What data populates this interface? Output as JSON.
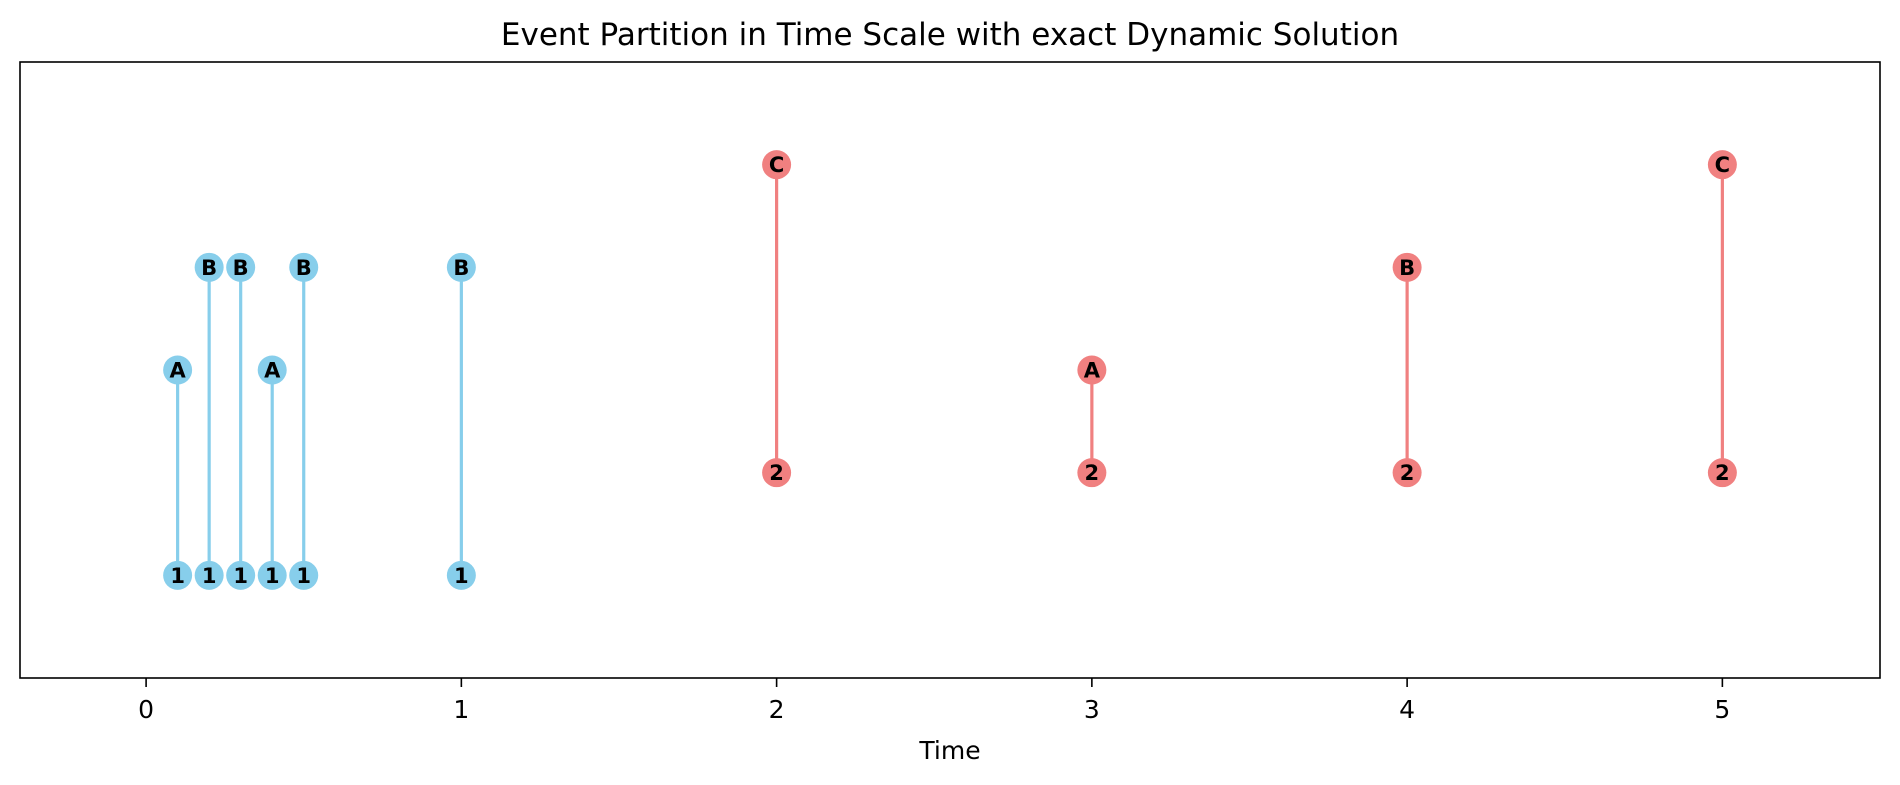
{
  "chart_data": {
    "type": "scatter",
    "title": "Event Partition in Time Scale with exact Dynamic Solution",
    "xlabel": "Time",
    "ylabel": "",
    "xlim": [
      -0.4,
      5.5
    ],
    "ylim": [
      0,
      6
    ],
    "xticks": [
      0,
      1,
      2,
      3,
      4,
      5
    ],
    "xtick_labels": [
      "0",
      "1",
      "2",
      "3",
      "4",
      "5"
    ],
    "yticks_visible": false,
    "grid": false,
    "legend": "none",
    "levels": {
      "1": 1,
      "2": 2,
      "A": 3,
      "B": 4,
      "C": 5
    },
    "series": [
      {
        "color": "#87CEEB",
        "events": [
          {
            "time": 0.1,
            "from": "1",
            "to": "A"
          },
          {
            "time": 0.2,
            "from": "1",
            "to": "B"
          },
          {
            "time": 0.3,
            "from": "1",
            "to": "B"
          },
          {
            "time": 0.4,
            "from": "1",
            "to": "A"
          },
          {
            "time": 0.5,
            "from": "1",
            "to": "B"
          },
          {
            "time": 1.0,
            "from": "1",
            "to": "B"
          }
        ]
      },
      {
        "color": "#F08080",
        "events": [
          {
            "time": 2.0,
            "from": "2",
            "to": "C"
          },
          {
            "time": 3.0,
            "from": "2",
            "to": "A"
          },
          {
            "time": 4.0,
            "from": "2",
            "to": "B"
          },
          {
            "time": 5.0,
            "from": "2",
            "to": "C"
          }
        ]
      }
    ]
  }
}
